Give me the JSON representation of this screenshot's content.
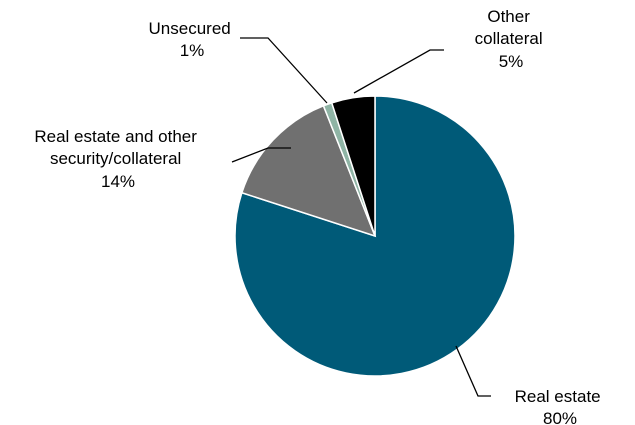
{
  "chart_data": {
    "type": "pie",
    "title": "",
    "slices": [
      {
        "label_lines": [
          "Real estate",
          "80%"
        ],
        "name": "Real estate",
        "value": 80,
        "color": "#005a78"
      },
      {
        "label_lines": [
          "Real estate and other",
          "security/collateral",
          "14%"
        ],
        "name": "Real estate and other security/collateral",
        "value": 14,
        "color": "#707070"
      },
      {
        "label_lines": [
          "Unsecured",
          "1%"
        ],
        "name": "Unsecured",
        "value": 1,
        "color": "#8fb4a5"
      },
      {
        "label_lines": [
          "Other",
          "collateral",
          "5%"
        ],
        "name": "Other collateral",
        "value": 5,
        "color": "#000000"
      }
    ],
    "start": "12 o'clock",
    "direction": "clockwise",
    "legend": "none (callout labels with leader lines)"
  }
}
